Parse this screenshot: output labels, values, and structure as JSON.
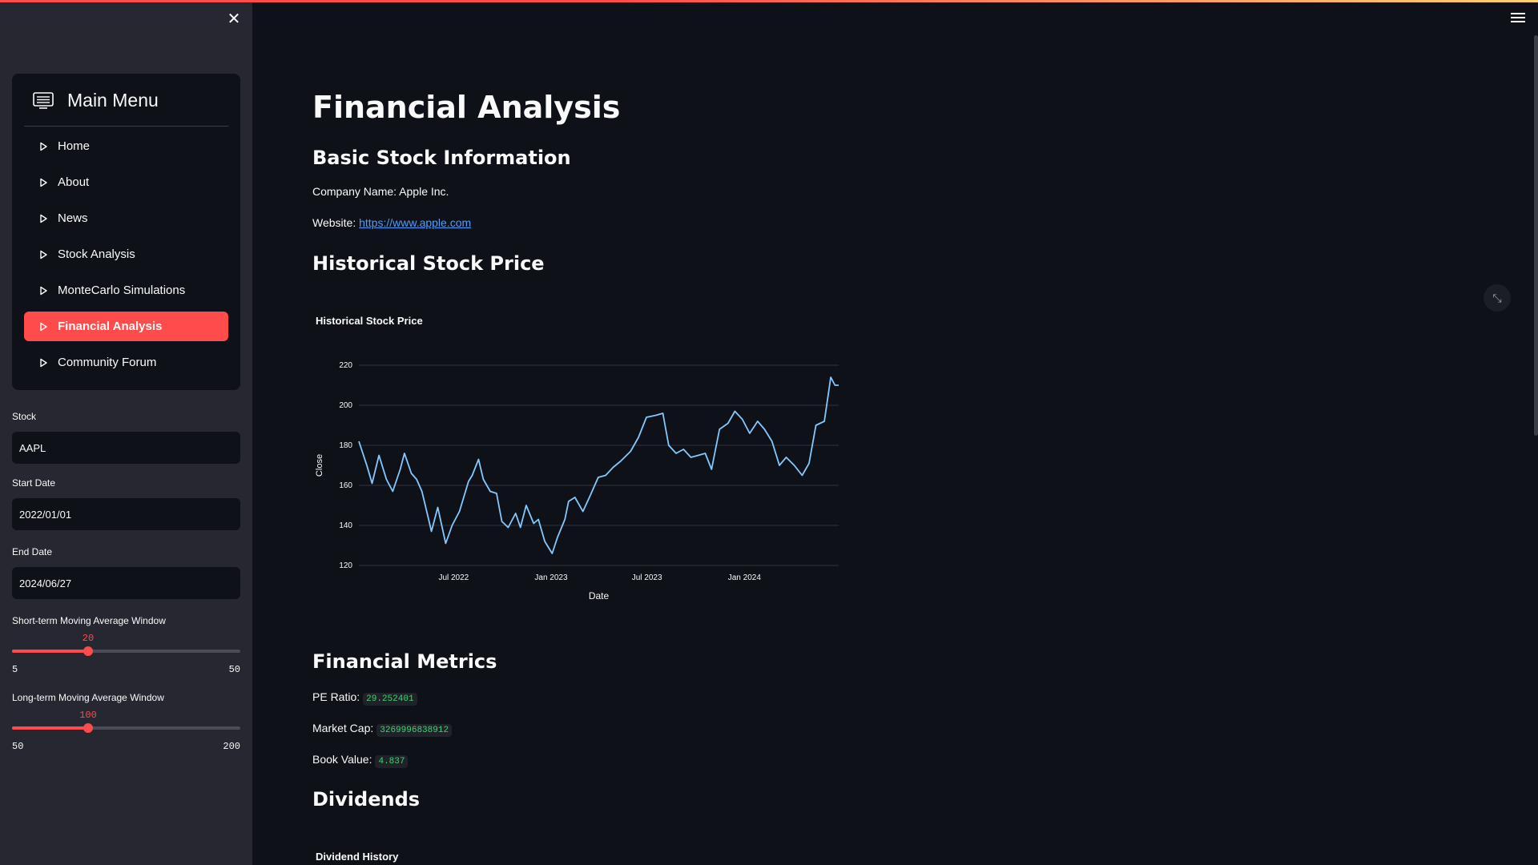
{
  "sidebar": {
    "close_icon": "close-icon",
    "menu": {
      "title": "Main Menu",
      "icon": "menu-list-icon",
      "items": [
        {
          "label": "Home",
          "active": false
        },
        {
          "label": "About",
          "active": false
        },
        {
          "label": "News",
          "active": false
        },
        {
          "label": "Stock Analysis",
          "active": false
        },
        {
          "label": "MonteCarlo Simulations",
          "active": false
        },
        {
          "label": "Financial Analysis",
          "active": true
        },
        {
          "label": "Community Forum",
          "active": false
        }
      ]
    },
    "stock": {
      "label": "Stock",
      "value": "AAPL"
    },
    "start_date": {
      "label": "Start Date",
      "value": "2022/01/01"
    },
    "end_date": {
      "label": "End Date",
      "value": "2024/06/27"
    },
    "short_ma": {
      "label": "Short-term Moving Average Window",
      "value": 20,
      "min": 5,
      "max": 50,
      "value_text": "20",
      "min_text": "5",
      "max_text": "50"
    },
    "long_ma": {
      "label": "Long-term Moving Average Window",
      "value": 100,
      "min": 50,
      "max": 200,
      "value_text": "100",
      "min_text": "50",
      "max_text": "200"
    }
  },
  "main": {
    "title": "Financial Analysis",
    "basic_info": {
      "heading": "Basic Stock Information",
      "company_label": "Company Name:",
      "company_value": "Apple Inc.",
      "website_label": "Website:",
      "website_value": "https://www.apple.com"
    },
    "historical": {
      "heading": "Historical Stock Price",
      "chart_title": "Historical Stock Price"
    },
    "metrics": {
      "heading": "Financial Metrics",
      "pe_label": "PE Ratio:",
      "pe_value": "29.252401",
      "mcap_label": "Market Cap:",
      "mcap_value": "3269996838912",
      "book_label": "Book Value:",
      "book_value": "4.837"
    },
    "dividends": {
      "heading": "Dividends",
      "chart_title": "Dividend History"
    }
  },
  "chart_data": {
    "type": "line",
    "title": "Historical Stock Price",
    "xlabel": "Date",
    "ylabel": "Close",
    "ylim": [
      120,
      220
    ],
    "yticks": [
      120,
      140,
      160,
      180,
      200,
      220
    ],
    "xticks": [
      "Jul 2022",
      "Jan 2023",
      "Jul 2023",
      "Jan 2024"
    ],
    "xtick_dates": [
      "2022-07-01",
      "2023-01-01",
      "2023-07-01",
      "2024-01-01"
    ],
    "xrange": [
      "2022-01-03",
      "2024-06-27"
    ],
    "grid": true,
    "line_color": "#83c9ff",
    "series": [
      {
        "name": "",
        "x": [
          "2022-01-03",
          "2022-01-18",
          "2022-01-28",
          "2022-02-10",
          "2022-02-24",
          "2022-03-08",
          "2022-03-22",
          "2022-03-30",
          "2022-04-12",
          "2022-04-22",
          "2022-05-02",
          "2022-05-12",
          "2022-05-20",
          "2022-06-01",
          "2022-06-16",
          "2022-06-28",
          "2022-07-12",
          "2022-07-29",
          "2022-08-05",
          "2022-08-17",
          "2022-08-26",
          "2022-09-08",
          "2022-09-20",
          "2022-09-30",
          "2022-10-12",
          "2022-10-26",
          "2022-11-04",
          "2022-11-15",
          "2022-11-29",
          "2022-12-08",
          "2022-12-20",
          "2023-01-03",
          "2023-01-13",
          "2023-01-27",
          "2023-02-03",
          "2023-02-15",
          "2023-03-02",
          "2023-03-16",
          "2023-03-31",
          "2023-04-14",
          "2023-04-28",
          "2023-05-12",
          "2023-05-31",
          "2023-06-15",
          "2023-06-30",
          "2023-07-18",
          "2023-07-31",
          "2023-08-11",
          "2023-08-25",
          "2023-09-08",
          "2023-09-22",
          "2023-10-06",
          "2023-10-19",
          "2023-10-31",
          "2023-11-15",
          "2023-12-01",
          "2023-12-14",
          "2023-12-28",
          "2024-01-11",
          "2024-01-26",
          "2024-02-08",
          "2024-02-22",
          "2024-03-07",
          "2024-03-20",
          "2024-04-04",
          "2024-04-19",
          "2024-05-02",
          "2024-05-15",
          "2024-05-31",
          "2024-06-12",
          "2024-06-20",
          "2024-06-27"
        ],
        "values": [
          182,
          170,
          161,
          175,
          163,
          157,
          168,
          176,
          166,
          163,
          157,
          146,
          137,
          149,
          131,
          140,
          147,
          162,
          165,
          173,
          163,
          157,
          156,
          142,
          139,
          146,
          139,
          150,
          141,
          143,
          132,
          126,
          134,
          143,
          152,
          154,
          147,
          155,
          164,
          165,
          169,
          172,
          177,
          184,
          194,
          195,
          196,
          180,
          176,
          178,
          174,
          175,
          176,
          168,
          188,
          191,
          197,
          193,
          186,
          192,
          188,
          182,
          170,
          174,
          170,
          165,
          171,
          190,
          192,
          214,
          210,
          210
        ]
      }
    ]
  }
}
